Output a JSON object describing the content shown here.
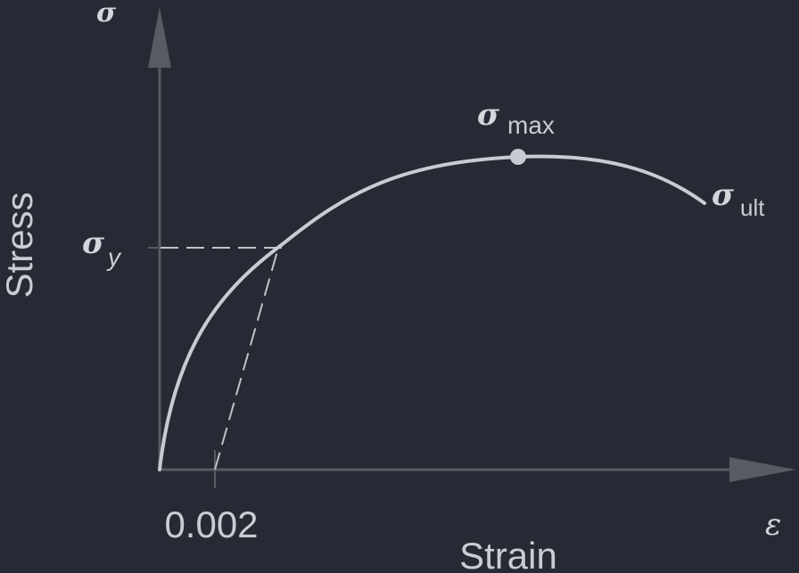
{
  "diagram": {
    "y_axis_symbol": "σ",
    "x_axis_symbol": "ε",
    "y_axis_label": "Stress",
    "x_axis_label": "Strain",
    "offset_tick_label": "0.002",
    "yield_label": {
      "symbol": "σ",
      "subscript": "y"
    },
    "max_label": {
      "symbol": "σ",
      "subscript": "max"
    },
    "ultimate_label": {
      "symbol": "σ",
      "subscript": "ult"
    }
  },
  "colors": {
    "background": "#262a34",
    "axis": "#575b62",
    "curve": "#c8cbd1",
    "dashed": "#c0c3c9",
    "text": "#c9ccd2"
  }
}
